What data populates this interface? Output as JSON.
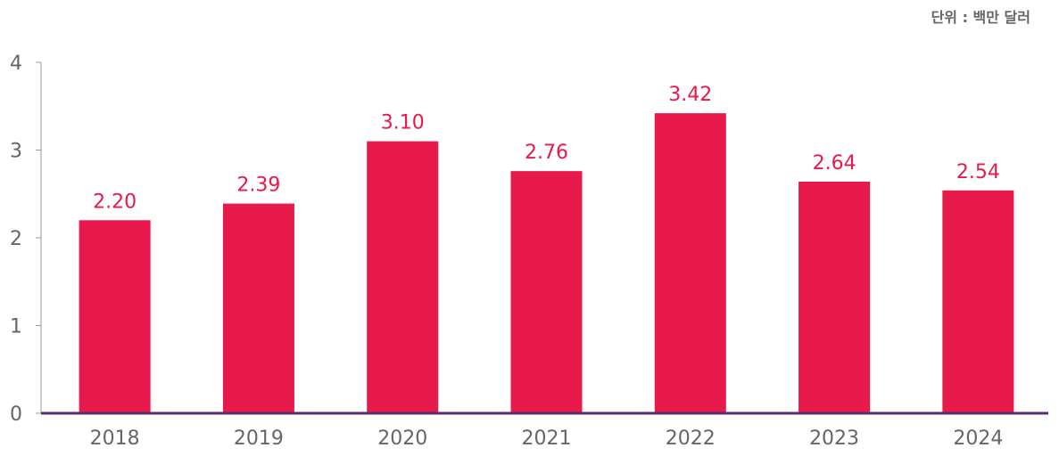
{
  "unit_note": "단위 : 백만 달러",
  "colors": {
    "bar": "#E8194B",
    "baseline": "#5E2A6B",
    "tick_text": "#666666",
    "axis": "#999999"
  },
  "chart_data": {
    "type": "bar",
    "title": "",
    "xlabel": "",
    "ylabel": "",
    "categories": [
      "2018",
      "2019",
      "2020",
      "2021",
      "2022",
      "2023",
      "2024"
    ],
    "values": [
      2.2,
      2.39,
      3.1,
      2.76,
      3.42,
      2.64,
      2.54
    ],
    "value_labels": [
      "2.20",
      "2.39",
      "3.10",
      "2.76",
      "3.42",
      "2.64",
      "2.54"
    ],
    "yticks": [
      "0",
      "1",
      "2",
      "3",
      "4"
    ],
    "ylim": [
      0,
      4
    ],
    "grid": false,
    "legend": "none"
  }
}
